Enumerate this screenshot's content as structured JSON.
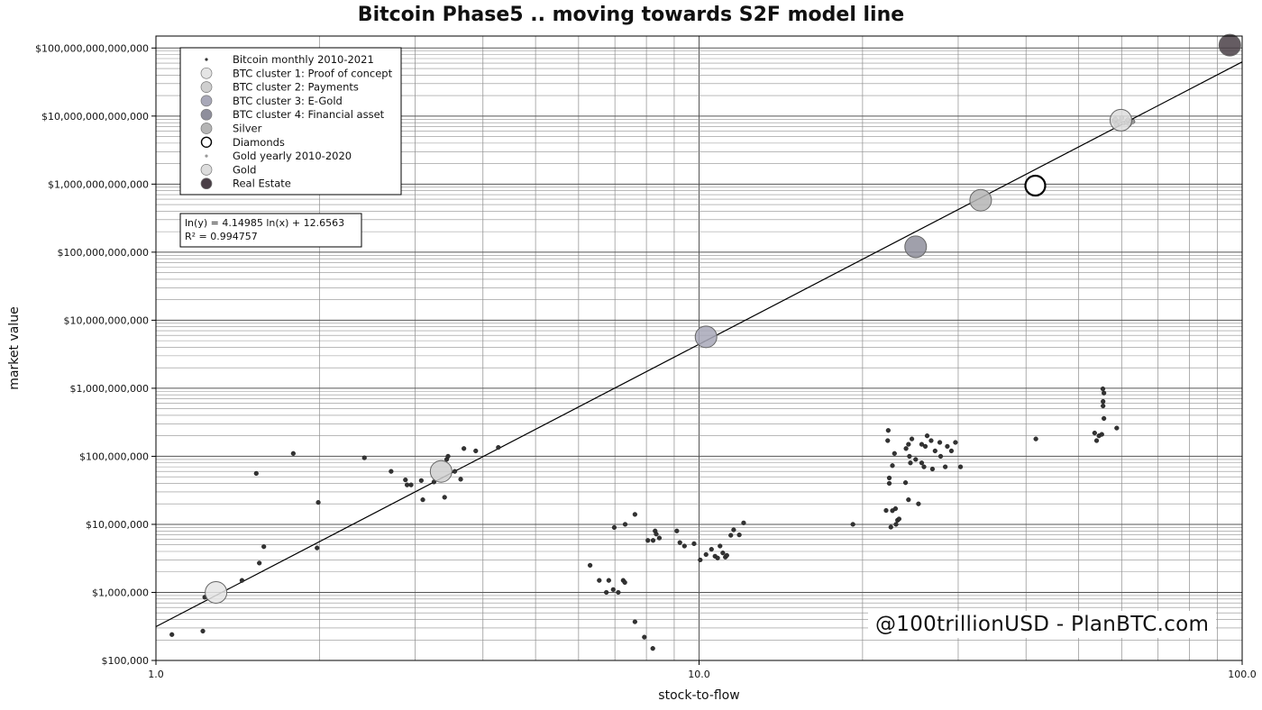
{
  "chart_data": {
    "type": "scatter",
    "title": "Bitcoin Phase5 .. moving towards S2F model line",
    "xlabel": "stock-to-flow",
    "ylabel": "market value",
    "xscale": "log",
    "yscale": "log",
    "xlim": [
      1.0,
      100.0
    ],
    "ylim": [
      100000,
      150000000000000
    ],
    "grid": true,
    "legend_position": "top-left",
    "x_ticks": [
      1.0,
      10.0,
      100.0
    ],
    "x_tick_labels": [
      "1.0",
      "10.0",
      "100.0"
    ],
    "y_ticks": [
      100000,
      1000000,
      10000000,
      100000000,
      1000000000,
      10000000000,
      100000000000,
      1000000000000,
      10000000000000,
      100000000000000
    ],
    "y_tick_labels": [
      "$100,000",
      "$1,000,000",
      "$10,000,000",
      "$100,000,000",
      "$1,000,000,000",
      "$10,000,000,000",
      "$100,000,000,000",
      "$1,000,000,000,000",
      "$10,000,000,000,000",
      "$100,000,000,000,000"
    ],
    "regression": {
      "label": "ln(y) = 4.14985 ln(x) + 12.6563",
      "r2_label": "R² = 0.994757",
      "a": 4.14985,
      "b": 12.6563
    },
    "series": [
      {
        "name": "Bitcoin monthly 2010-2021",
        "marker": "small-dot",
        "color": "#333333",
        "points": [
          [
            1.07,
            240000
          ],
          [
            1.22,
            270000
          ],
          [
            1.23,
            850000
          ],
          [
            1.44,
            1500000
          ],
          [
            1.55,
            2700000
          ],
          [
            1.58,
            4700000
          ],
          [
            1.98,
            4500000
          ],
          [
            1.99,
            21000000
          ],
          [
            1.53,
            56000000
          ],
          [
            1.79,
            110000000
          ],
          [
            2.42,
            95000000
          ],
          [
            2.71,
            60000000
          ],
          [
            2.88,
            45000000
          ],
          [
            2.9,
            38000000
          ],
          [
            2.95,
            38000000
          ],
          [
            3.08,
            44000000
          ],
          [
            3.1,
            23000000
          ],
          [
            3.25,
            42000000
          ],
          [
            3.4,
            25000000
          ],
          [
            3.43,
            90000000
          ],
          [
            3.45,
            100000000
          ],
          [
            3.55,
            60000000
          ],
          [
            3.64,
            46000000
          ],
          [
            3.69,
            130000000
          ],
          [
            3.88,
            120000000
          ],
          [
            4.27,
            135000000
          ],
          [
            6.3,
            2500000
          ],
          [
            6.55,
            1500000
          ],
          [
            6.75,
            1000000
          ],
          [
            6.82,
            1500000
          ],
          [
            6.95,
            1100000
          ],
          [
            7.1,
            1000000
          ],
          [
            7.25,
            1500000
          ],
          [
            7.3,
            1400000
          ],
          [
            6.98,
            9000000
          ],
          [
            7.31,
            10000000
          ],
          [
            7.62,
            14000000
          ],
          [
            7.62,
            370000
          ],
          [
            7.93,
            220000
          ],
          [
            8.22,
            150000
          ],
          [
            8.05,
            5800000
          ],
          [
            8.23,
            5800000
          ],
          [
            8.3,
            8000000
          ],
          [
            8.34,
            7200000
          ],
          [
            8.45,
            6300000
          ],
          [
            9.1,
            8000000
          ],
          [
            9.22,
            5400000
          ],
          [
            9.4,
            4800000
          ],
          [
            9.79,
            5200000
          ],
          [
            10.05,
            3000000
          ],
          [
            10.3,
            3600000
          ],
          [
            10.54,
            4300000
          ],
          [
            10.7,
            3400000
          ],
          [
            10.82,
            3200000
          ],
          [
            10.93,
            4800000
          ],
          [
            11.06,
            3800000
          ],
          [
            11.18,
            3300000
          ],
          [
            11.25,
            3500000
          ],
          [
            11.44,
            6900000
          ],
          [
            11.58,
            8300000
          ],
          [
            11.86,
            7000000
          ],
          [
            12.08,
            10500000
          ],
          [
            19.2,
            10000000
          ],
          [
            22.1,
            16000000
          ],
          [
            22.55,
            9100000
          ],
          [
            22.7,
            15900000
          ],
          [
            23.05,
            10000000
          ],
          [
            23.2,
            11500000
          ],
          [
            23.35,
            12000000
          ],
          [
            23.0,
            17000000
          ],
          [
            22.4,
            40000000
          ],
          [
            22.4,
            48000000
          ],
          [
            22.7,
            73000000
          ],
          [
            22.25,
            170000000
          ],
          [
            22.3,
            240000000
          ],
          [
            22.9,
            110000000
          ],
          [
            24.05,
            130000000
          ],
          [
            24.3,
            150000000
          ],
          [
            24.65,
            180000000
          ],
          [
            24.4,
            100000000
          ],
          [
            24.5,
            80000000
          ],
          [
            24.0,
            41000000
          ],
          [
            24.3,
            23000000
          ],
          [
            25.05,
            90000000
          ],
          [
            25.7,
            80000000
          ],
          [
            25.95,
            70000000
          ],
          [
            26.9,
            65000000
          ],
          [
            25.7,
            150000000
          ],
          [
            26.1,
            140000000
          ],
          [
            26.3,
            200000000
          ],
          [
            26.75,
            170000000
          ],
          [
            27.2,
            120000000
          ],
          [
            27.75,
            160000000
          ],
          [
            27.85,
            100000000
          ],
          [
            28.4,
            70000000
          ],
          [
            28.65,
            140000000
          ],
          [
            29.15,
            120000000
          ],
          [
            29.65,
            160000000
          ],
          [
            30.3,
            70000000
          ],
          [
            25.35,
            20000000
          ],
          [
            41.7,
            180000000
          ],
          [
            53.5,
            220000000
          ],
          [
            53.95,
            170000000
          ],
          [
            54.5,
            200000000
          ],
          [
            55.15,
            210000000
          ],
          [
            55.65,
            360000000
          ],
          [
            55.45,
            550000000
          ],
          [
            55.45,
            640000000
          ],
          [
            55.65,
            850000000
          ],
          [
            55.4,
            980000000
          ],
          [
            58.75,
            260000000
          ]
        ]
      },
      {
        "name": "BTC cluster 1: Proof of concept",
        "marker": "large-circle",
        "color": "#e5e5e5",
        "points": [
          [
            1.29,
            1000000
          ]
        ]
      },
      {
        "name": "BTC cluster 2: Payments",
        "marker": "large-circle",
        "color": "#cfcfcf",
        "points": [
          [
            3.35,
            60000000
          ]
        ]
      },
      {
        "name": "BTC cluster 3: E-Gold",
        "marker": "large-circle",
        "color": "#a8a8b8",
        "points": [
          [
            10.3,
            5700000000
          ]
        ]
      },
      {
        "name": "BTC cluster 4: Financial asset",
        "marker": "large-circle",
        "color": "#8f8f9c",
        "points": [
          [
            25.05,
            120000000000
          ]
        ]
      },
      {
        "name": "Silver",
        "marker": "large-circle",
        "color": "#b5b5b5",
        "points": [
          [
            33.0,
            580000000000
          ]
        ]
      },
      {
        "name": "Diamonds",
        "marker": "large-circle-hollow",
        "color": "#000000",
        "points": [
          [
            41.6,
            950000000000
          ]
        ]
      },
      {
        "name": "Gold yearly 2010-2020",
        "marker": "small-dot",
        "color": "#999999",
        "points": [
          [
            58.0,
            8500000000000
          ],
          [
            58.4,
            9000000000000
          ],
          [
            58.9,
            7800000000000
          ],
          [
            59.3,
            8200000000000
          ],
          [
            60.0,
            9400000000000
          ],
          [
            60.5,
            7900000000000
          ],
          [
            61.2,
            8100000000000
          ],
          [
            62.0,
            7600000000000
          ],
          [
            62.9,
            8300000000000
          ],
          [
            58.6,
            7500000000000
          ],
          [
            61.6,
            8800000000000
          ]
        ]
      },
      {
        "name": "Gold",
        "marker": "large-circle",
        "color": "#dddddd",
        "points": [
          [
            59.8,
            8700000000000
          ]
        ]
      },
      {
        "name": "Real Estate",
        "marker": "large-circle",
        "color": "#4a3f47",
        "points": [
          [
            94.9,
            110000000000000
          ]
        ]
      }
    ]
  },
  "watermark": "@100trillionUSD  -  PlanBTC.com"
}
